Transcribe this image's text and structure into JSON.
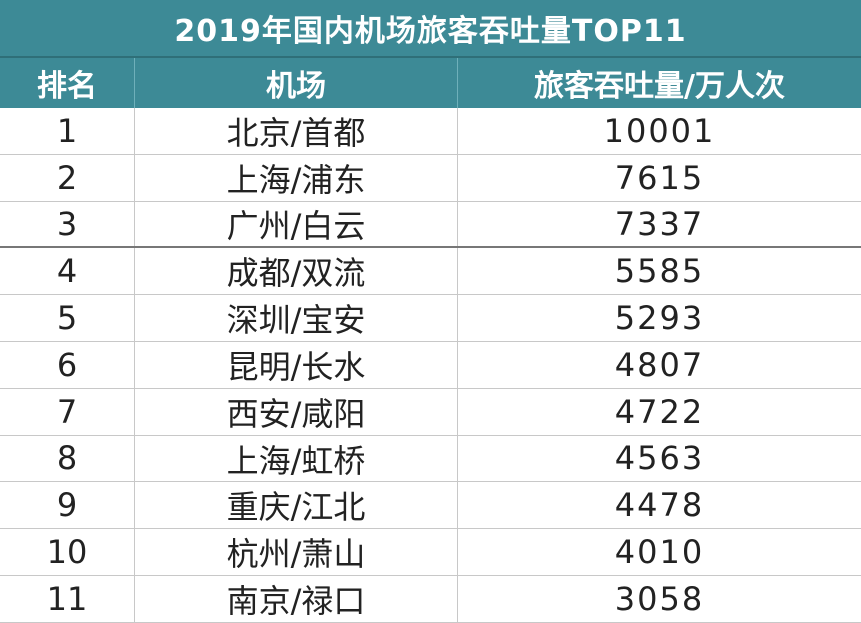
{
  "chart_data": {
    "type": "table",
    "title": "2019年国内机场旅客吞吐量TOP11",
    "columns": [
      "排名",
      "机场",
      "旅客吞吐量/万人次"
    ],
    "rows": [
      {
        "rank": "1",
        "airport": "北京/首都",
        "passengers": "10001"
      },
      {
        "rank": "2",
        "airport": "上海/浦东",
        "passengers": "7615"
      },
      {
        "rank": "3",
        "airport": "广州/白云",
        "passengers": "7337"
      },
      {
        "rank": "4",
        "airport": "成都/双流",
        "passengers": "5585"
      },
      {
        "rank": "5",
        "airport": "深圳/宝安",
        "passengers": "5293"
      },
      {
        "rank": "6",
        "airport": "昆明/长水",
        "passengers": "4807"
      },
      {
        "rank": "7",
        "airport": "西安/咸阳",
        "passengers": "4722"
      },
      {
        "rank": "8",
        "airport": "上海/虹桥",
        "passengers": "4563"
      },
      {
        "rank": "9",
        "airport": "重庆/江北",
        "passengers": "4478"
      },
      {
        "rank": "10",
        "airport": "杭州/萧山",
        "passengers": "4010"
      },
      {
        "rank": "11",
        "airport": "南京/禄口",
        "passengers": "3058"
      }
    ]
  },
  "colors": {
    "header_bg": "#3d8a96",
    "header_text": "#ffffff"
  }
}
